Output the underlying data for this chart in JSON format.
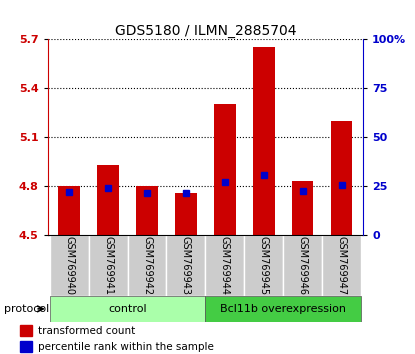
{
  "title": "GDS5180 / ILMN_2885704",
  "samples": [
    "GSM769940",
    "GSM769941",
    "GSM769942",
    "GSM769943",
    "GSM769944",
    "GSM769945",
    "GSM769946",
    "GSM769947"
  ],
  "bar_values": [
    4.8,
    4.93,
    4.8,
    4.76,
    5.3,
    5.65,
    4.83,
    5.2
  ],
  "blue_markers": [
    4.765,
    4.787,
    4.758,
    4.76,
    4.825,
    4.87,
    4.772,
    4.808
  ],
  "ymin": 4.5,
  "ymax": 5.7,
  "yticks": [
    4.5,
    4.8,
    5.1,
    5.4,
    5.7
  ],
  "ytick_labels": [
    "4.5",
    "4.8",
    "5.1",
    "5.4",
    "5.7"
  ],
  "right_yticks": [
    0,
    25,
    50,
    75,
    100
  ],
  "right_ytick_labels": [
    "0",
    "25",
    "50",
    "75",
    "100%"
  ],
  "bar_color": "#cc0000",
  "blue_color": "#0000cc",
  "bar_bottom": 4.5,
  "groups": [
    {
      "label": "control",
      "start": 0,
      "end": 3,
      "color": "#aaffaa"
    },
    {
      "label": "Bcl11b overexpression",
      "start": 4,
      "end": 7,
      "color": "#44cc44"
    }
  ],
  "protocol_label": "protocol",
  "legend_items": [
    {
      "color": "#cc0000",
      "label": "transformed count"
    },
    {
      "color": "#0000cc",
      "label": "percentile rank within the sample"
    }
  ],
  "tick_label_color_left": "#cc0000",
  "tick_label_color_right": "#0000cc",
  "background_color": "#ffffff",
  "bar_width": 0.55,
  "xticklabel_bg": "#cccccc",
  "xticklabel_bg2": "#bbbbbb"
}
